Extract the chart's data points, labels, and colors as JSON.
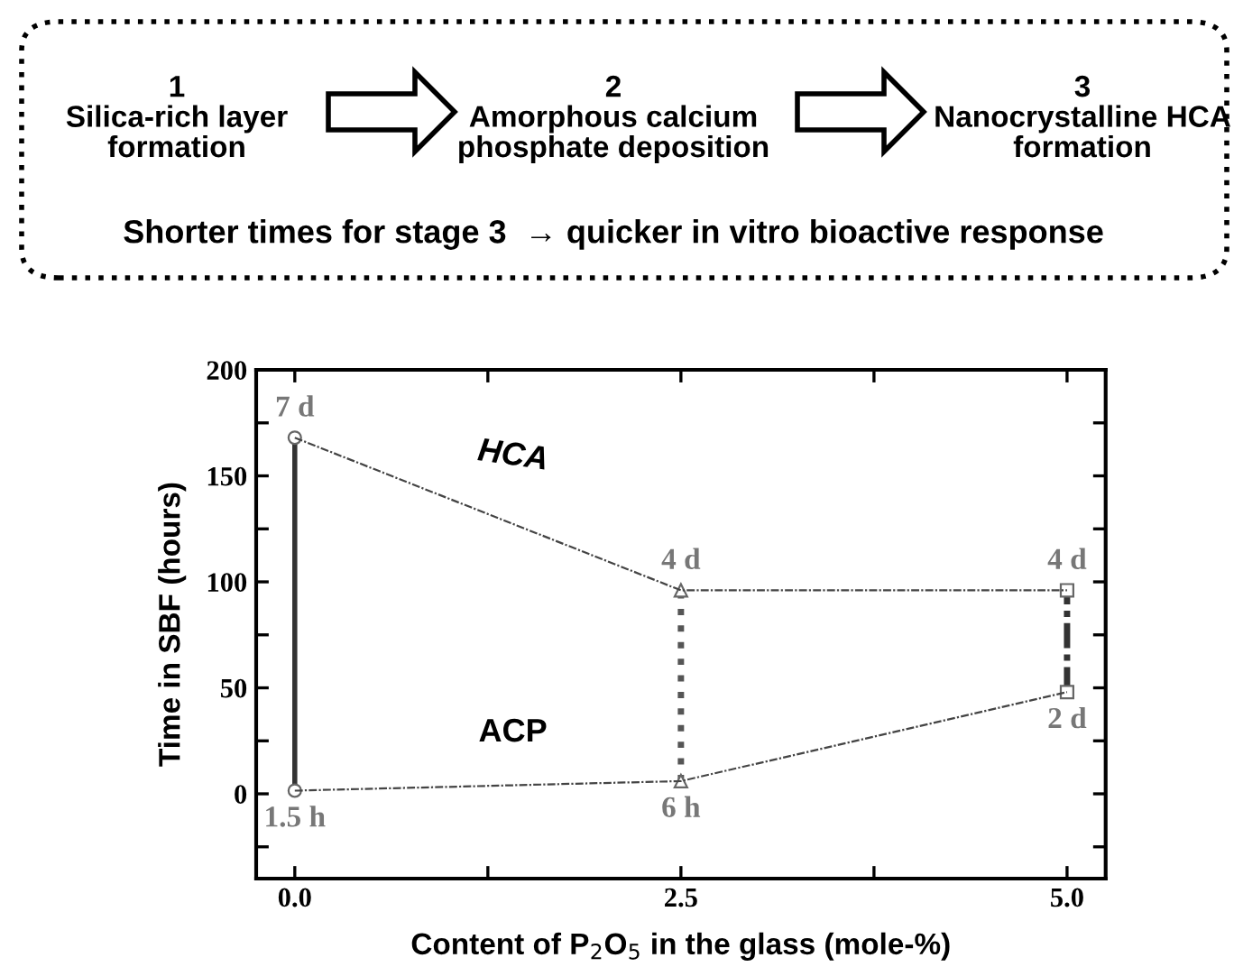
{
  "chart_data": {
    "type": "line",
    "xlabel": "Content of P$_{2}$O$_{5}$ in the glass (mole-%)",
    "ylabel": "Time in SBF (hours)",
    "xlim": [
      -0.25,
      5.25
    ],
    "xticks": [
      {
        "value": 0,
        "label": "0.0"
      },
      {
        "value": 1.25,
        "label": null
      },
      {
        "value": 2.5,
        "label": "2.5"
      },
      {
        "value": 3.75,
        "label": null
      },
      {
        "value": 5,
        "label": "5.0"
      }
    ],
    "ylim": [
      -40,
      200
    ],
    "yticks": [
      {
        "value": -25,
        "label": null
      },
      0,
      {
        "value": 25,
        "label": null
      },
      50,
      {
        "value": 75,
        "label": null
      },
      100,
      {
        "value": 125,
        "label": null
      },
      150,
      {
        "value": 175,
        "label": null
      },
      200
    ],
    "grid": false,
    "legend": false,
    "series": [
      {
        "color": "#333333",
        "x": [
          0,
          0
        ],
        "values": [
          1.5,
          168
        ],
        "line_style": "solid",
        "marker": "circle"
      },
      {
        "color": "#555555",
        "x": [
          2.5,
          2.5
        ],
        "values": [
          6,
          96
        ],
        "line_style": "dotted",
        "marker": "triangle"
      },
      {
        "color": "#333333",
        "x": [
          5,
          5
        ],
        "values": [
          48,
          96
        ],
        "line_style": "dashed",
        "marker": "square"
      },
      {
        "name": "HCA",
        "color": "#444444",
        "x": [
          0,
          2.5,
          5
        ],
        "values": [
          168,
          96,
          96
        ],
        "line_style": "dashed",
        "marker": "none"
      },
      {
        "name": "ACP",
        "color": "#444444",
        "x": [
          0,
          2.5,
          5
        ],
        "values": [
          1.5,
          6,
          48
        ],
        "line_style": "dashed",
        "marker": "none"
      }
    ],
    "annotations": [
      "1\nSilica-rich layer\nformation",
      "2\nAmorphous calcium\nphosphate deposition",
      "3\nNanocrystalline HCA\nformation",
      "Shorter times for stage 3  → quicker in vitro bioactive response",
      {
        "text": "7 d",
        "x": 0,
        "y": 168
      },
      {
        "text": "1.5 h",
        "x": 0,
        "y": 1.5
      },
      {
        "text": "4 d",
        "x": 2.5,
        "y": 96
      },
      {
        "text": "6 h",
        "x": 2.5,
        "y": 6
      },
      {
        "text": "4 d",
        "x": 5,
        "y": 96
      },
      {
        "text": "2 d",
        "x": 5,
        "y": 48
      }
    ]
  }
}
